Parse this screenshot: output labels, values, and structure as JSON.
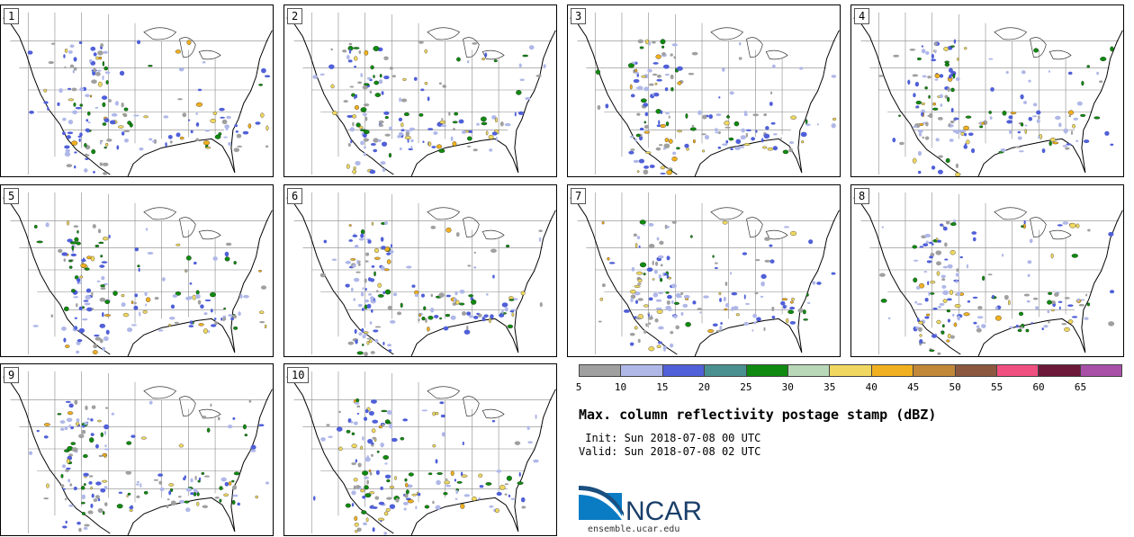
{
  "panels": [
    {
      "label": "1"
    },
    {
      "label": "2"
    },
    {
      "label": "3"
    },
    {
      "label": "4"
    },
    {
      "label": "5"
    },
    {
      "label": "6"
    },
    {
      "label": "7"
    },
    {
      "label": "8"
    },
    {
      "label": "9"
    },
    {
      "label": "10"
    }
  ],
  "colorbar": {
    "colors": [
      "#a0a0a0",
      "#b0b8e8",
      "#5060d8",
      "#4a9090",
      "#108a10",
      "#b8d8b8",
      "#f0d860",
      "#f0b020",
      "#c08838",
      "#8c5840",
      "#f05080",
      "#6c1838",
      "#a850a8"
    ],
    "ticks": [
      "5",
      "10",
      "15",
      "20",
      "25",
      "30",
      "35",
      "40",
      "45",
      "50",
      "55",
      "60",
      "65"
    ]
  },
  "title": "Max. column reflectivity postage stamp (dBZ)",
  "init": " Init: Sun 2018-07-08 00 UTC",
  "valid": "Valid: Sun 2018-07-08 02 UTC",
  "logo_text": "NCAR",
  "url": "ensemble.ucar.edu"
}
